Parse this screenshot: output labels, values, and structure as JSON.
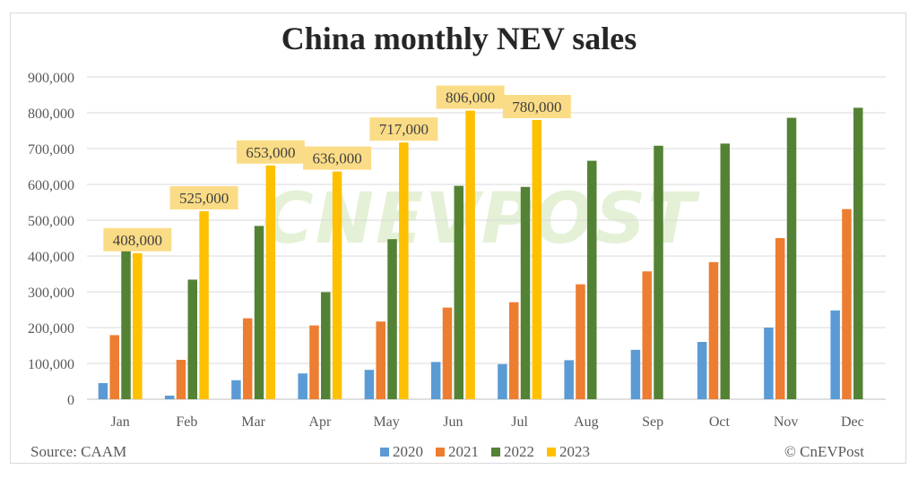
{
  "chart_data": {
    "type": "bar",
    "title": "China monthly NEV sales",
    "categories": [
      "Jan",
      "Feb",
      "Mar",
      "Apr",
      "May",
      "Jun",
      "Jul",
      "Aug",
      "Sep",
      "Oct",
      "Nov",
      "Dec"
    ],
    "series": [
      {
        "name": "2020",
        "color": "#5b9bd5",
        "values": [
          45000,
          10000,
          53000,
          72000,
          82000,
          104000,
          98000,
          109000,
          138000,
          160000,
          200000,
          248000
        ]
      },
      {
        "name": "2021",
        "color": "#ed7d31",
        "values": [
          179000,
          110000,
          226000,
          206000,
          217000,
          256000,
          271000,
          321000,
          357000,
          383000,
          450000,
          531000
        ]
      },
      {
        "name": "2022",
        "color": "#548235",
        "values": [
          431000,
          334000,
          484000,
          299000,
          447000,
          596000,
          593000,
          666000,
          708000,
          714000,
          786000,
          814000
        ]
      },
      {
        "name": "2023",
        "color": "#ffc000",
        "values": [
          408000,
          525000,
          653000,
          636000,
          717000,
          806000,
          780000,
          null,
          null,
          null,
          null,
          null
        ]
      }
    ],
    "data_labels": {
      "series": "2023",
      "texts": [
        "408,000",
        "525,000",
        "653,000",
        "636,000",
        "717,000",
        "806,000",
        "780,000"
      ],
      "background": "#fbdc86"
    },
    "yticks": [
      "0",
      "100,000",
      "200,000",
      "300,000",
      "400,000",
      "500,000",
      "600,000",
      "700,000",
      "800,000",
      "900,000"
    ],
    "ylim": [
      0,
      900000
    ],
    "grid": true,
    "legend": "bottom"
  },
  "source": "Source: CAAM",
  "credit": "© CnEVPost",
  "watermark": "CNEVPOST"
}
